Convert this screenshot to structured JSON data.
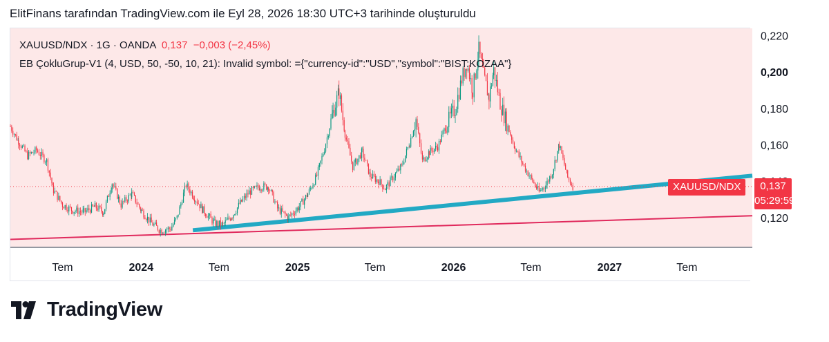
{
  "header": {
    "text": "ElitFinans tarafından TradingView.com ile Eyl 28, 2026 18:30 UTC+3 tarihinde oluşturuldu"
  },
  "legend": {
    "symbol": "XAUUSD/NDX · 1G · OANDA",
    "price": "0,137",
    "change": "−0,003 (−2,45%)",
    "indicator": "EB ÇokluGrup-V1 (4, USD, 50, -50, 10, 21): Invalid symbol: ={\"currency-id\":\"USD\",\"symbol\":\"BIST:KOZAA\"}"
  },
  "price_tag": {
    "value": "0,137",
    "countdown": "05:29:59"
  },
  "symbol_tag": "XAUUSD/NDX",
  "brand": {
    "name": "TradingView"
  },
  "colors": {
    "background": "#fde8e8",
    "candle_up": "#089981",
    "candle_down": "#f23645",
    "trendline_teal": "#22a9c4",
    "trendline_red": "#e0295c"
  },
  "chart_data": {
    "type": "candlestick",
    "y_axis": {
      "ticks": [
        "0,220",
        "0,200",
        "0,180",
        "0,160",
        "0,140",
        "0,120"
      ],
      "tick_values": [
        0.22,
        0.2,
        0.18,
        0.16,
        0.14,
        0.12
      ],
      "bold_tick": "0,200",
      "range": [
        0.104,
        0.224
      ]
    },
    "x_axis": {
      "ticks": [
        "Tem",
        "2024",
        "Tem",
        "2025",
        "Tem",
        "2026",
        "Tem",
        "2027",
        "Tem"
      ],
      "tick_dates": [
        "2023-07",
        "2024-01",
        "2024-07",
        "2025-01",
        "2025-07",
        "2026-01",
        "2026-07",
        "2027-01",
        "2027-07"
      ],
      "bold": [
        "2024",
        "2025",
        "2026",
        "2027"
      ],
      "range": [
        "2023-03",
        "2027-12"
      ]
    },
    "series": [
      {
        "points": [
          [
            "2023-03-01",
            0.17
          ],
          [
            "2023-03-20",
            0.162
          ],
          [
            "2023-04-10",
            0.154
          ],
          [
            "2023-05-01",
            0.157
          ],
          [
            "2023-05-25",
            0.151
          ],
          [
            "2023-06-10",
            0.135
          ],
          [
            "2023-07-01",
            0.127
          ],
          [
            "2023-07-25",
            0.124
          ],
          [
            "2023-08-20",
            0.123
          ],
          [
            "2023-09-15",
            0.126
          ],
          [
            "2023-10-05",
            0.123
          ],
          [
            "2023-10-25",
            0.139
          ],
          [
            "2023-11-15",
            0.127
          ],
          [
            "2023-12-10",
            0.133
          ],
          [
            "2024-01-01",
            0.124
          ],
          [
            "2024-01-25",
            0.117
          ],
          [
            "2024-02-15",
            0.113
          ],
          [
            "2024-03-10",
            0.114
          ],
          [
            "2024-03-25",
            0.12
          ],
          [
            "2024-04-15",
            0.138
          ],
          [
            "2024-05-05",
            0.131
          ],
          [
            "2024-05-25",
            0.124
          ],
          [
            "2024-06-20",
            0.117
          ],
          [
            "2024-07-10",
            0.116
          ],
          [
            "2024-08-01",
            0.121
          ],
          [
            "2024-08-20",
            0.128
          ],
          [
            "2024-09-10",
            0.134
          ],
          [
            "2024-10-05",
            0.137
          ],
          [
            "2024-10-25",
            0.137
          ],
          [
            "2024-11-15",
            0.125
          ],
          [
            "2024-12-10",
            0.12
          ],
          [
            "2025-01-05",
            0.126
          ],
          [
            "2025-01-25",
            0.133
          ],
          [
            "2025-02-15",
            0.143
          ],
          [
            "2025-03-05",
            0.158
          ],
          [
            "2025-03-25",
            0.178
          ],
          [
            "2025-04-08",
            0.189
          ],
          [
            "2025-04-22",
            0.166
          ],
          [
            "2025-05-10",
            0.148
          ],
          [
            "2025-06-01",
            0.156
          ],
          [
            "2025-06-20",
            0.143
          ],
          [
            "2025-07-10",
            0.14
          ],
          [
            "2025-07-25",
            0.136
          ],
          [
            "2025-08-15",
            0.143
          ],
          [
            "2025-09-01",
            0.148
          ],
          [
            "2025-09-20",
            0.161
          ],
          [
            "2025-10-05",
            0.174
          ],
          [
            "2025-10-20",
            0.151
          ],
          [
            "2025-11-05",
            0.156
          ],
          [
            "2025-11-25",
            0.159
          ],
          [
            "2025-12-15",
            0.171
          ],
          [
            "2026-01-05",
            0.18
          ],
          [
            "2026-01-20",
            0.196
          ],
          [
            "2026-02-01",
            0.205
          ],
          [
            "2026-02-15",
            0.19
          ],
          [
            "2026-03-01",
            0.212
          ],
          [
            "2026-03-12",
            0.198
          ],
          [
            "2026-03-25",
            0.186
          ],
          [
            "2026-04-05",
            0.201
          ],
          [
            "2026-04-20",
            0.183
          ],
          [
            "2026-05-05",
            0.172
          ],
          [
            "2026-05-25",
            0.158
          ],
          [
            "2026-06-15",
            0.148
          ],
          [
            "2026-07-05",
            0.14
          ],
          [
            "2026-07-20",
            0.134
          ],
          [
            "2026-08-05",
            0.138
          ],
          [
            "2026-08-20",
            0.145
          ],
          [
            "2026-09-05",
            0.16
          ],
          [
            "2026-09-25",
            0.142
          ],
          [
            "2026-10-08",
            0.137
          ]
        ]
      }
    ],
    "trendlines": [
      {
        "color": "teal",
        "from": [
          "2024-05-01",
          0.113
        ],
        "to": [
          "2027-12-01",
          0.143
        ]
      },
      {
        "color": "red",
        "from": [
          "2023-03-01",
          0.108
        ],
        "to": [
          "2027-12-01",
          0.121
        ]
      }
    ],
    "last_price_line": 0.137
  }
}
